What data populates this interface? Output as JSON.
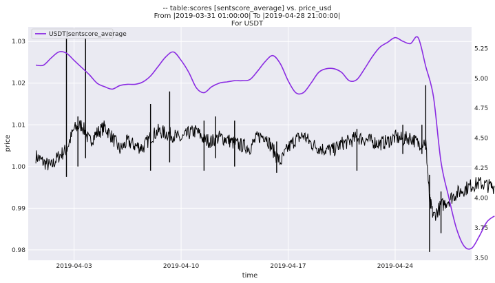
{
  "chart_data": {
    "type": "line",
    "title_lines": [
      "-- table:scores [sentscore_average] vs. price_usd",
      "From |2019-03-31 01:00:00| To |2019-04-28 21:00:00|",
      "For USDT"
    ],
    "xlabel": "time",
    "ylabel": "price",
    "x_ticks": [
      "2019-04-03",
      "2019-04-10",
      "2019-04-17",
      "2019-04-24"
    ],
    "x_range": [
      "2019-03-31",
      "2019-04-29"
    ],
    "y_left_ticks": [
      0.98,
      0.99,
      1.0,
      1.01,
      1.02,
      1.03
    ],
    "y_left_range": [
      0.9775,
      1.0335
    ],
    "y_right_ticks": [
      3.5,
      3.75,
      4.0,
      4.25,
      4.5,
      4.75,
      5.0,
      5.25
    ],
    "y_right_range": [
      3.48,
      5.43
    ],
    "grid": true,
    "legend_position": "top-left",
    "series": [
      {
        "name": "USDT|sentscore_average",
        "axis": "right",
        "color": "#8a2be2",
        "points": [
          [
            "2019-03-31T12:00",
            5.11
          ],
          [
            "2019-04-01T00:00",
            5.11
          ],
          [
            "2019-04-01T12:00",
            5.17
          ],
          [
            "2019-04-02T00:00",
            5.22
          ],
          [
            "2019-04-02T12:00",
            5.21
          ],
          [
            "2019-04-03T00:00",
            5.15
          ],
          [
            "2019-04-03T12:00",
            5.09
          ],
          [
            "2019-04-04T00:00",
            5.03
          ],
          [
            "2019-04-04T12:00",
            4.96
          ],
          [
            "2019-04-05T00:00",
            4.93
          ],
          [
            "2019-04-05T12:00",
            4.91
          ],
          [
            "2019-04-06T00:00",
            4.94
          ],
          [
            "2019-04-06T12:00",
            4.95
          ],
          [
            "2019-04-07T00:00",
            4.95
          ],
          [
            "2019-04-07T12:00",
            4.97
          ],
          [
            "2019-04-08T00:00",
            5.02
          ],
          [
            "2019-04-08T12:00",
            5.1
          ],
          [
            "2019-04-09T00:00",
            5.18
          ],
          [
            "2019-04-09T12:00",
            5.22
          ],
          [
            "2019-04-10T00:00",
            5.15
          ],
          [
            "2019-04-10T12:00",
            5.05
          ],
          [
            "2019-04-11T00:00",
            4.92
          ],
          [
            "2019-04-11T12:00",
            4.88
          ],
          [
            "2019-04-12T00:00",
            4.93
          ],
          [
            "2019-04-12T12:00",
            4.96
          ],
          [
            "2019-04-13T00:00",
            4.97
          ],
          [
            "2019-04-13T12:00",
            4.98
          ],
          [
            "2019-04-14T00:00",
            4.98
          ],
          [
            "2019-04-14T12:00",
            4.99
          ],
          [
            "2019-04-15T00:00",
            5.06
          ],
          [
            "2019-04-15T12:00",
            5.14
          ],
          [
            "2019-04-16T00:00",
            5.19
          ],
          [
            "2019-04-16T12:00",
            5.12
          ],
          [
            "2019-04-17T00:00",
            4.98
          ],
          [
            "2019-04-17T12:00",
            4.88
          ],
          [
            "2019-04-18T00:00",
            4.88
          ],
          [
            "2019-04-18T12:00",
            4.96
          ],
          [
            "2019-04-19T00:00",
            5.05
          ],
          [
            "2019-04-19T12:00",
            5.08
          ],
          [
            "2019-04-20T00:00",
            5.08
          ],
          [
            "2019-04-20T12:00",
            5.05
          ],
          [
            "2019-04-21T00:00",
            4.98
          ],
          [
            "2019-04-21T12:00",
            4.99
          ],
          [
            "2019-04-22T00:00",
            5.08
          ],
          [
            "2019-04-22T12:00",
            5.18
          ],
          [
            "2019-04-23T00:00",
            5.26
          ],
          [
            "2019-04-23T12:00",
            5.3
          ],
          [
            "2019-04-24T00:00",
            5.34
          ],
          [
            "2019-04-24T12:00",
            5.31
          ],
          [
            "2019-04-25T00:00",
            5.29
          ],
          [
            "2019-04-25T12:00",
            5.34
          ],
          [
            "2019-04-26T00:00",
            5.1
          ],
          [
            "2019-04-26T12:00",
            4.85
          ],
          [
            "2019-04-27T00:00",
            4.3
          ],
          [
            "2019-04-27T12:00",
            4.01
          ],
          [
            "2019-04-28T00:00",
            3.75
          ],
          [
            "2019-04-28T12:00",
            3.6
          ],
          [
            "2019-04-29T00:00",
            3.58
          ],
          [
            "2019-04-29T12:00",
            3.68
          ],
          [
            "2019-04-30T00:00",
            3.8
          ],
          [
            "2019-04-30T12:00",
            3.85
          ]
        ]
      },
      {
        "name": "price_usd",
        "axis": "left",
        "color": "#000000",
        "points": [
          [
            "2019-03-31T12:00",
            1.0025
          ],
          [
            "2019-04-01T00:00",
            1.001
          ],
          [
            "2019-04-01T12:00",
            1.0
          ],
          [
            "2019-04-02T00:00",
            1.0025
          ],
          [
            "2019-04-02T12:00",
            1.004
          ],
          [
            "2019-04-03T00:00",
            1.009
          ],
          [
            "2019-04-03T12:00",
            1.01
          ],
          [
            "2019-04-04T00:00",
            1.006
          ],
          [
            "2019-04-04T12:00",
            1.008
          ],
          [
            "2019-04-05T00:00",
            1.0095
          ],
          [
            "2019-04-05T12:00",
            1.007
          ],
          [
            "2019-04-06T00:00",
            1.004
          ],
          [
            "2019-04-06T12:00",
            1.006
          ],
          [
            "2019-04-07T00:00",
            1.005
          ],
          [
            "2019-04-07T12:00",
            1.0045
          ],
          [
            "2019-04-08T00:00",
            1.007
          ],
          [
            "2019-04-08T12:00",
            1.0085
          ],
          [
            "2019-04-09T00:00",
            1.008
          ],
          [
            "2019-04-09T12:00",
            1.0075
          ],
          [
            "2019-04-10T00:00",
            1.0065
          ],
          [
            "2019-04-10T12:00",
            1.008
          ],
          [
            "2019-04-11T00:00",
            1.0085
          ],
          [
            "2019-04-11T12:00",
            1.0065
          ],
          [
            "2019-04-12T00:00",
            1.006
          ],
          [
            "2019-04-12T12:00",
            1.007
          ],
          [
            "2019-04-13T00:00",
            1.0065
          ],
          [
            "2019-04-13T12:00",
            1.0055
          ],
          [
            "2019-04-14T00:00",
            1.005
          ],
          [
            "2019-04-14T12:00",
            1.0045
          ],
          [
            "2019-04-15T00:00",
            1.007
          ],
          [
            "2019-04-15T12:00",
            1.0075
          ],
          [
            "2019-04-16T00:00",
            1.004
          ],
          [
            "2019-04-16T12:00",
            1.001
          ],
          [
            "2019-04-17T00:00",
            1.0045
          ],
          [
            "2019-04-17T12:00",
            1.0065
          ],
          [
            "2019-04-18T00:00",
            1.0075
          ],
          [
            "2019-04-18T12:00",
            1.0055
          ],
          [
            "2019-04-19T00:00",
            1.0045
          ],
          [
            "2019-04-19T12:00",
            1.004
          ],
          [
            "2019-04-20T00:00",
            1.004
          ],
          [
            "2019-04-20T12:00",
            1.0055
          ],
          [
            "2019-04-21T00:00",
            1.006
          ],
          [
            "2019-04-21T12:00",
            1.007
          ],
          [
            "2019-04-22T00:00",
            1.0065
          ],
          [
            "2019-04-22T12:00",
            1.006
          ],
          [
            "2019-04-23T00:00",
            1.0055
          ],
          [
            "2019-04-23T12:00",
            1.006
          ],
          [
            "2019-04-24T00:00",
            1.007
          ],
          [
            "2019-04-24T12:00",
            1.0065
          ],
          [
            "2019-04-25T00:00",
            1.007
          ],
          [
            "2019-04-25T12:00",
            1.0055
          ],
          [
            "2019-04-26T00:00",
            1.006
          ],
          [
            "2019-04-26T06:00",
            0.992
          ],
          [
            "2019-04-26T12:00",
            0.988
          ],
          [
            "2019-04-27T00:00",
            0.9905
          ],
          [
            "2019-04-27T12:00",
            0.992
          ],
          [
            "2019-04-28T00:00",
            0.9935
          ],
          [
            "2019-04-28T12:00",
            0.9945
          ],
          [
            "2019-04-29T00:00",
            0.9955
          ],
          [
            "2019-04-29T12:00",
            0.996
          ],
          [
            "2019-04-30T00:00",
            0.9955
          ],
          [
            "2019-04-30T12:00",
            0.995
          ]
        ],
        "spikes": [
          [
            "2019-04-02T12:00",
            0.9975,
            1.031
          ],
          [
            "2019-04-03T18:00",
            1.002,
            1.031
          ],
          [
            "2019-04-03T06:00",
            1.0,
            1.012
          ],
          [
            "2019-04-08T00:00",
            0.999,
            1.015
          ],
          [
            "2019-04-09T06:00",
            1.001,
            1.018
          ],
          [
            "2019-04-11T12:00",
            0.999,
            1.011
          ],
          [
            "2019-04-12T06:00",
            1.002,
            1.012
          ],
          [
            "2019-04-13T12:00",
            1.0,
            1.011
          ],
          [
            "2019-04-16T06:00",
            0.9985,
            1.006
          ],
          [
            "2019-04-21T12:00",
            0.999,
            1.009
          ],
          [
            "2019-04-24T12:00",
            1.003,
            1.01
          ],
          [
            "2019-04-25T18:00",
            1.003,
            1.01
          ],
          [
            "2019-04-26T00:00",
            1.004,
            1.0195
          ],
          [
            "2019-04-26T06:00",
            0.9795,
            0.998
          ],
          [
            "2019-04-27T00:00",
            0.984,
            0.994
          ]
        ]
      }
    ]
  }
}
